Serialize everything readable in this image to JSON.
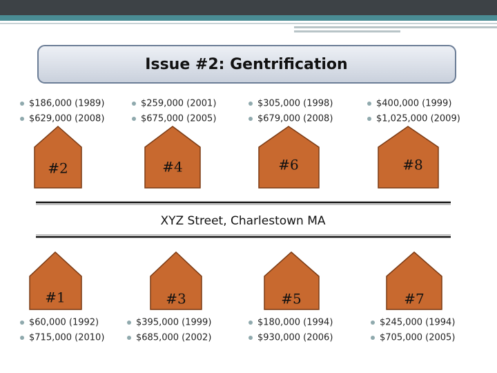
{
  "title": "Issue #2: Gentrification",
  "street": "XYZ Street, Charlestown MA",
  "top_houses": [
    {
      "label": "#2",
      "prices": [
        "$186,000 (1989)",
        "$629,000 (2008)"
      ]
    },
    {
      "label": "#4",
      "prices": [
        "$259,000 (2001)",
        "$675,000 (2005)"
      ]
    },
    {
      "label": "#6",
      "prices": [
        "$305,000 (1998)",
        "$679,000 (2008)"
      ]
    },
    {
      "label": "#8",
      "prices": [
        "$400,000 (1999)",
        "$1,025,000 (2009)"
      ]
    }
  ],
  "bottom_houses": [
    {
      "label": "#1",
      "prices": [
        "$60,000 (1992)",
        "$715,000 (2010)"
      ]
    },
    {
      "label": "#3",
      "prices": [
        "$395,000 (1999)",
        "$685,000 (2002)"
      ]
    },
    {
      "label": "#5",
      "prices": [
        "$180,000 (1994)",
        "$930,000 (2006)"
      ]
    },
    {
      "label": "#7",
      "prices": [
        "$245,000 (1994)",
        "$705,000 (2005)"
      ]
    }
  ]
}
